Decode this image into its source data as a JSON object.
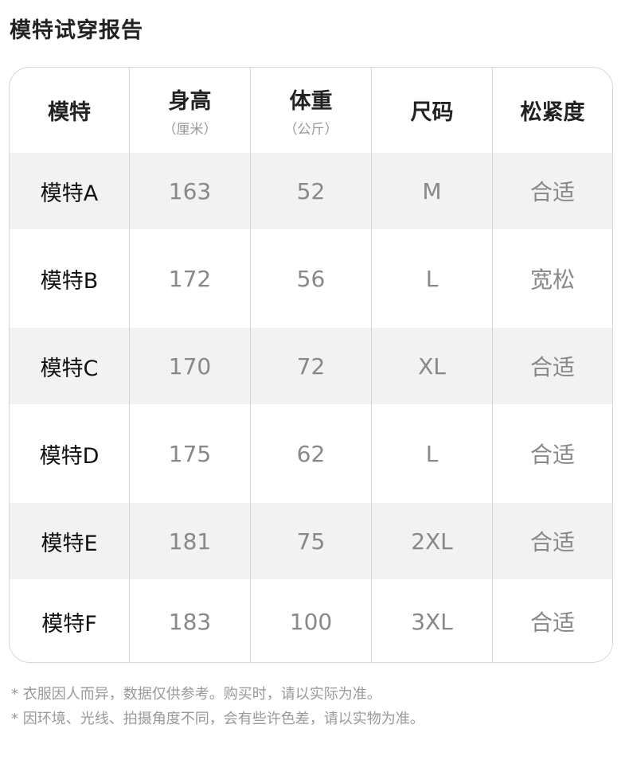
{
  "title": "模特试穿报告",
  "headers": [
    {
      "label": "模特",
      "unit": ""
    },
    {
      "label": "身高",
      "unit": "（厘米）"
    },
    {
      "label": "体重",
      "unit": "（公斤）"
    },
    {
      "label": "尺码",
      "unit": ""
    },
    {
      "label": "松紧度",
      "unit": ""
    }
  ],
  "rows": [
    [
      "模特A",
      "163",
      "52",
      "M",
      "合适"
    ],
    [
      "模特B",
      "172",
      "56",
      "L",
      "宽松"
    ],
    [
      "模特C",
      "170",
      "72",
      "XL",
      "合适"
    ],
    [
      "模特D",
      "175",
      "62",
      "L",
      "合适"
    ],
    [
      "模特E",
      "181",
      "75",
      "2XL",
      "合适"
    ],
    [
      "模特F",
      "183",
      "100",
      "3XL",
      "合适"
    ]
  ],
  "notes": [
    "* 衣服因人而异，数据仅供参考。购买时，请以实际为准。",
    "* 因环境、光线、拍摄角度不同，会有些许色差，请以实物为准。"
  ],
  "colors": {
    "stripe": "#f2f2f2",
    "border": "#d6d6d6",
    "value_text": "#888888"
  }
}
